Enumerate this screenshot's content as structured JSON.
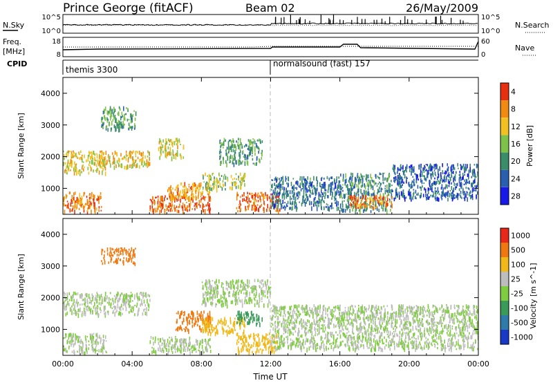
{
  "header": {
    "station": "Prince George (fitACF)",
    "beam": "Beam 02",
    "date": "26/May/2009"
  },
  "noise_panel": {
    "left_label": "N.Sky",
    "left_ticks": [
      "10^5",
      "10^0"
    ],
    "right_label": "N.Search",
    "right_ticks": [
      "10^5",
      "10^0"
    ]
  },
  "freq_panel": {
    "left_label_1": "Freq.",
    "left_label_2": "[MHz]",
    "left_ticks": [
      "18",
      "8"
    ],
    "right_label": "Nave",
    "right_ticks": [
      "60",
      "0"
    ]
  },
  "cpid": {
    "label": "CPID",
    "segments": [
      {
        "text": "themis 3300",
        "start_hour": 0
      },
      {
        "text": "normalsound (fast) 157",
        "start_hour": 12
      }
    ]
  },
  "time_axis": {
    "label": "Time UT",
    "ticks": [
      "00:00",
      "04:00",
      "08:00",
      "12:00",
      "16:00",
      "20:00",
      "00:00"
    ]
  },
  "power_panel": {
    "ylabel": "Slant Range [km]",
    "yticks": [
      1000,
      2000,
      3000,
      4000
    ],
    "cbar_label": "Power [dB]",
    "cbar_ticks": [
      "4",
      "8",
      "12",
      "16",
      "20",
      "24",
      "28"
    ],
    "cbar_colors": [
      "#1818e8",
      "#2a5fb0",
      "#3b8d6a",
      "#7fc24a",
      "#f2c020",
      "#f08a10",
      "#e83010"
    ]
  },
  "velocity_panel": {
    "ylabel": "Slant Range [km]",
    "yticks": [
      1000,
      2000,
      3000,
      4000
    ],
    "cbar_label": "Velocity [m s^-1]",
    "cbar_ticks": [
      "1000",
      "500",
      "100",
      "25",
      "-25",
      "-100",
      "-500",
      "-1000"
    ],
    "cbar_colors": [
      "#1838c8",
      "#2e7aa8",
      "#3a9a58",
      "#7fcc40",
      "#bdbdbd",
      "#f0b818",
      "#f07810",
      "#e82818"
    ]
  },
  "chart_data": [
    {
      "type": "heatmap",
      "title": "Power",
      "xlabel": "Time UT",
      "ylabel": "Slant Range [km]",
      "xlim": [
        0,
        24
      ],
      "ylim": [
        180,
        4500
      ],
      "zlabel": "Power [dB]",
      "zlim": [
        0,
        30
      ],
      "regions": [
        {
          "t0": 0.0,
          "t1": 2.2,
          "r0": 300,
          "r1": 900,
          "value": 24
        },
        {
          "t0": 0.0,
          "t1": 2.5,
          "r0": 1500,
          "r1": 2200,
          "value": 18
        },
        {
          "t0": 2.0,
          "t1": 5.0,
          "r0": 1700,
          "r1": 2200,
          "value": 20
        },
        {
          "t0": 2.2,
          "t1": 4.2,
          "r0": 2900,
          "r1": 3600,
          "value": 12
        },
        {
          "t0": 5.0,
          "t1": 8.5,
          "r0": 300,
          "r1": 800,
          "value": 26
        },
        {
          "t0": 5.5,
          "t1": 7.0,
          "r0": 2000,
          "r1": 2600,
          "value": 18
        },
        {
          "t0": 6.0,
          "t1": 8.5,
          "r0": 700,
          "r1": 1200,
          "value": 22
        },
        {
          "t0": 8.0,
          "t1": 10.5,
          "r0": 1000,
          "r1": 1500,
          "value": 16
        },
        {
          "t0": 9.0,
          "t1": 11.5,
          "r0": 1800,
          "r1": 2600,
          "value": 12
        },
        {
          "t0": 10.0,
          "t1": 12.5,
          "r0": 300,
          "r1": 900,
          "value": 26
        },
        {
          "t0": 12.0,
          "t1": 16.0,
          "r0": 400,
          "r1": 1400,
          "value": 8
        },
        {
          "t0": 16.0,
          "t1": 19.0,
          "r0": 300,
          "r1": 1500,
          "value": 10
        },
        {
          "t0": 16.5,
          "t1": 19.0,
          "r0": 400,
          "r1": 800,
          "value": 24
        },
        {
          "t0": 19.0,
          "t1": 24.0,
          "r0": 700,
          "r1": 1800,
          "value": 7
        }
      ]
    },
    {
      "type": "heatmap",
      "title": "Velocity",
      "xlabel": "Time UT",
      "ylabel": "Slant Range [km]",
      "xlim": [
        0,
        24
      ],
      "ylim": [
        180,
        4500
      ],
      "zlabel": "Velocity [m s^-1]",
      "zlim": [
        -1000,
        1000
      ],
      "regions": [
        {
          "t0": 0.0,
          "t1": 2.5,
          "r0": 300,
          "r1": 900,
          "value": 0
        },
        {
          "t0": 0.0,
          "t1": 5.0,
          "r0": 1500,
          "r1": 2200,
          "value": 0
        },
        {
          "t0": 2.2,
          "t1": 4.2,
          "r0": 3100,
          "r1": 3600,
          "value": -600
        },
        {
          "t0": 5.0,
          "t1": 8.5,
          "r0": 300,
          "r1": 800,
          "value": 0
        },
        {
          "t0": 6.5,
          "t1": 8.5,
          "r0": 1000,
          "r1": 1600,
          "value": -700
        },
        {
          "t0": 8.0,
          "t1": 10.5,
          "r0": 900,
          "r1": 1400,
          "value": -200
        },
        {
          "t0": 10.0,
          "t1": 11.5,
          "r0": 1200,
          "r1": 1600,
          "value": 150
        },
        {
          "t0": 10.0,
          "t1": 12.5,
          "r0": 300,
          "r1": 900,
          "value": -100
        },
        {
          "t0": 12.0,
          "t1": 24.0,
          "r0": 400,
          "r1": 1800,
          "value": 0
        },
        {
          "t0": 8.0,
          "t1": 12.0,
          "r0": 1800,
          "r1": 2600,
          "value": 0
        }
      ]
    }
  ]
}
